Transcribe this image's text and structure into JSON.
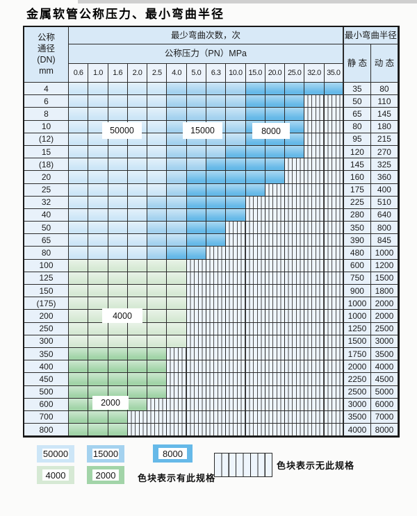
{
  "title": "金属软管公称压力、最小弯曲半径",
  "table": {
    "header": {
      "corner_lines": [
        "公称",
        "通径",
        "(DN)",
        "mm"
      ],
      "bend_cycles": "最少弯曲次数，次",
      "pressure": "公称压力（PN）MPa",
      "pressure_values": [
        "0.6",
        "1.0",
        "1.6",
        "2.0",
        "2.5",
        "4.0",
        "5.0",
        "6.3",
        "10.0",
        "15.0",
        "20.0",
        "25.0",
        "32.0",
        "35.0"
      ],
      "bend_radius": "最小弯曲半径",
      "static": "静 态",
      "dynamic": "动 态"
    },
    "zone_key": {
      "L": "50000",
      "M": "15000",
      "D": "8000",
      "G": "4000",
      "E": "2000",
      "X": "no-spec"
    },
    "rows": [
      {
        "dn": "4",
        "zones": "LLLLLMMMMDDDDD",
        "static": "35",
        "dynamic": "80"
      },
      {
        "dn": "6",
        "zones": "LLLLLMMMMDDDXX",
        "static": "50",
        "dynamic": "110"
      },
      {
        "dn": "8",
        "zones": "LLLLLMMMMDDDXX",
        "static": "65",
        "dynamic": "145"
      },
      {
        "dn": "10",
        "zones": "LLLLLMMMMDDDXX",
        "static": "80",
        "dynamic": "180"
      },
      {
        "dn": "(12)",
        "zones": "LLLLLMMMMDDDXX",
        "static": "95",
        "dynamic": "215"
      },
      {
        "dn": "15",
        "zones": "LLLLLMMMDDDDXX",
        "static": "120",
        "dynamic": "270"
      },
      {
        "dn": "(18)",
        "zones": "LLLLLMMDDDDXXX",
        "static": "145",
        "dynamic": "325"
      },
      {
        "dn": "20",
        "zones": "LLLLLMDDDDDXXX",
        "static": "160",
        "dynamic": "360"
      },
      {
        "dn": "25",
        "zones": "LLLLLMDDDDXXXX",
        "static": "175",
        "dynamic": "400"
      },
      {
        "dn": "32",
        "zones": "LLLLMMDDDXXXXX",
        "static": "225",
        "dynamic": "510"
      },
      {
        "dn": "40",
        "zones": "LLLLMMDDDXXXXX",
        "static": "280",
        "dynamic": "640"
      },
      {
        "dn": "50",
        "zones": "LLLLMMDDXXXXXX",
        "static": "350",
        "dynamic": "800"
      },
      {
        "dn": "65",
        "zones": "LLLLMMDDXXXXXX",
        "static": "390",
        "dynamic": "845"
      },
      {
        "dn": "80",
        "zones": "LLLLMDDXXXXXXX",
        "static": "480",
        "dynamic": "1000"
      },
      {
        "dn": "100",
        "zones": "GGGGGGXXXXXXXX",
        "static": "600",
        "dynamic": "1200"
      },
      {
        "dn": "125",
        "zones": "GGGGGGXXXXXXXX",
        "static": "750",
        "dynamic": "1500"
      },
      {
        "dn": "150",
        "zones": "GGGGGGXXXXXXXX",
        "static": "900",
        "dynamic": "1800"
      },
      {
        "dn": "(175)",
        "zones": "GGGGGGXXXXXXXX",
        "static": "1000",
        "dynamic": "2000"
      },
      {
        "dn": "200",
        "zones": "GGGGGGXXXXXXXX",
        "static": "1000",
        "dynamic": "2000"
      },
      {
        "dn": "250",
        "zones": "GGGGGGXXXXXXXX",
        "static": "1250",
        "dynamic": "2500"
      },
      {
        "dn": "300",
        "zones": "GGGGGGXXXXXXXX",
        "static": "1500",
        "dynamic": "3000"
      },
      {
        "dn": "350",
        "zones": "EEEEEXXXXXXXXX",
        "static": "1750",
        "dynamic": "3500"
      },
      {
        "dn": "400",
        "zones": "EEEEEXXXXXXXXX",
        "static": "2000",
        "dynamic": "4000"
      },
      {
        "dn": "450",
        "zones": "EEEEEXXXXXXXXX",
        "static": "2250",
        "dynamic": "4500"
      },
      {
        "dn": "500",
        "zones": "EEEEEXXXXXXXXX",
        "static": "2500",
        "dynamic": "5000"
      },
      {
        "dn": "600",
        "zones": "EEEEXXXXXXXXXX",
        "static": "3000",
        "dynamic": "6000"
      },
      {
        "dn": "700",
        "zones": "EEEXXXXXXXXXXX",
        "static": "3500",
        "dynamic": "7000"
      },
      {
        "dn": "800",
        "zones": "EEEXXXXXXXXXXX",
        "static": "4000",
        "dynamic": "8000"
      }
    ],
    "overlay_labels": [
      "50000",
      "15000",
      "8000",
      "4000",
      "2000"
    ]
  },
  "legend": {
    "available_items": [
      {
        "label": "50000",
        "zone": "blue_50000"
      },
      {
        "label": "15000",
        "zone": "blue_15000"
      },
      {
        "label": "8000",
        "zone": "blue_8000"
      },
      {
        "label": "4000",
        "zone": "green_4000"
      },
      {
        "label": "2000",
        "zone": "green_2000"
      }
    ],
    "available_note": "色块表示有此规格",
    "unavailable_note": "色块表示无此规格"
  },
  "colors": {
    "blue_50000": "#cde6f7",
    "blue_15000": "#a4d2ef",
    "blue_8000": "#66b9e8",
    "green_4000": "#d6e9d4",
    "green_2000": "#a2d4a8",
    "header_bg": "#d8e9f7",
    "values_bg": "#ecf3fb",
    "row_label_bg": "#e8f1fa",
    "hatch_bg": "#eef5fc",
    "grid_line": "#2a2a2a"
  }
}
